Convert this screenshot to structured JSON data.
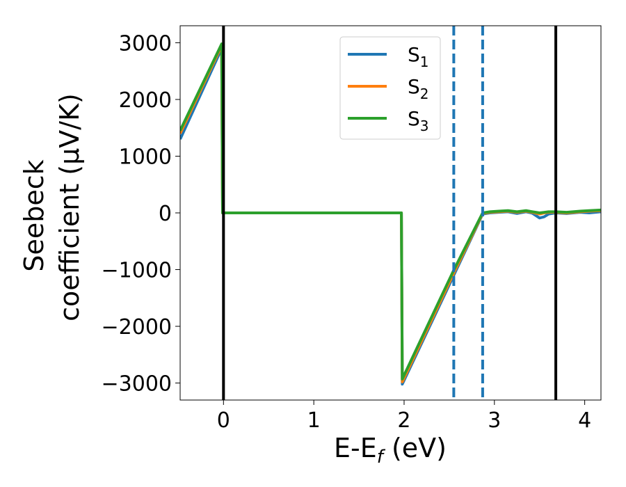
{
  "chart_data": {
    "type": "line",
    "xlabel": "E-E_f (eV)",
    "xlabel_main": "E-E",
    "xlabel_sub": "f",
    "xlabel_tail": " (eV)",
    "ylabel_line1": "Seebeck",
    "ylabel_line2": "coefficient  (μV/K)",
    "xlim": [
      -0.48,
      4.18
    ],
    "ylim": [
      -3300,
      3300
    ],
    "xticks": [
      0,
      1,
      2,
      3,
      4
    ],
    "xtick_labels": [
      "0",
      "1",
      "2",
      "3",
      "4"
    ],
    "yticks": [
      3000,
      2000,
      1000,
      0,
      -1000,
      -2000,
      -3000
    ],
    "ytick_labels": [
      "3000",
      "2000",
      "1000",
      "0",
      "−1000",
      "−2000",
      "−3000"
    ],
    "grid": false,
    "legend_position": "top-center",
    "vertical_lines": [
      {
        "x": 0.0,
        "style": "solid",
        "color": "#000000"
      },
      {
        "x": 3.68,
        "style": "solid",
        "color": "#000000"
      },
      {
        "x": 2.55,
        "style": "dashed",
        "color": "#1f77b4"
      },
      {
        "x": 2.87,
        "style": "dashed",
        "color": "#1f77b4"
      }
    ],
    "series": [
      {
        "name": "S_1",
        "label_main": "S",
        "label_sub": "1",
        "color": "#1f77b4",
        "x": [
          -0.48,
          -0.02,
          -0.01,
          1.97,
          1.98,
          2.55,
          2.87,
          2.95,
          3.05,
          3.15,
          3.25,
          3.35,
          3.42,
          3.5,
          3.55,
          3.6,
          3.68,
          3.8,
          3.95,
          4.05,
          4.18
        ],
        "y": [
          1300,
          2900,
          0,
          0,
          -3020,
          -1100,
          -20,
          0,
          10,
          20,
          -10,
          20,
          -5,
          -90,
          -70,
          -20,
          0,
          -10,
          10,
          0,
          20
        ]
      },
      {
        "name": "S_2",
        "label_main": "S",
        "label_sub": "2",
        "color": "#ff7f0e",
        "x": [
          -0.48,
          -0.02,
          -0.01,
          1.97,
          1.98,
          2.55,
          2.87,
          2.95,
          3.05,
          3.15,
          3.25,
          3.35,
          3.42,
          3.5,
          3.55,
          3.6,
          3.68,
          3.8,
          3.95,
          4.05,
          4.18
        ],
        "y": [
          1400,
          2950,
          0,
          0,
          -2980,
          -1060,
          -10,
          10,
          20,
          30,
          10,
          30,
          10,
          -20,
          0,
          10,
          10,
          0,
          20,
          30,
          40
        ]
      },
      {
        "name": "S_3",
        "label_main": "S",
        "label_sub": "3",
        "color": "#2ca02c",
        "x": [
          -0.48,
          -0.02,
          -0.01,
          1.97,
          1.98,
          2.55,
          2.87,
          2.95,
          3.05,
          3.15,
          3.25,
          3.35,
          3.42,
          3.5,
          3.55,
          3.6,
          3.68,
          3.8,
          3.95,
          4.05,
          4.18
        ],
        "y": [
          1450,
          2980,
          0,
          0,
          -2930,
          -1010,
          0,
          20,
          30,
          40,
          20,
          40,
          20,
          0,
          10,
          20,
          20,
          10,
          30,
          40,
          50
        ]
      }
    ]
  }
}
